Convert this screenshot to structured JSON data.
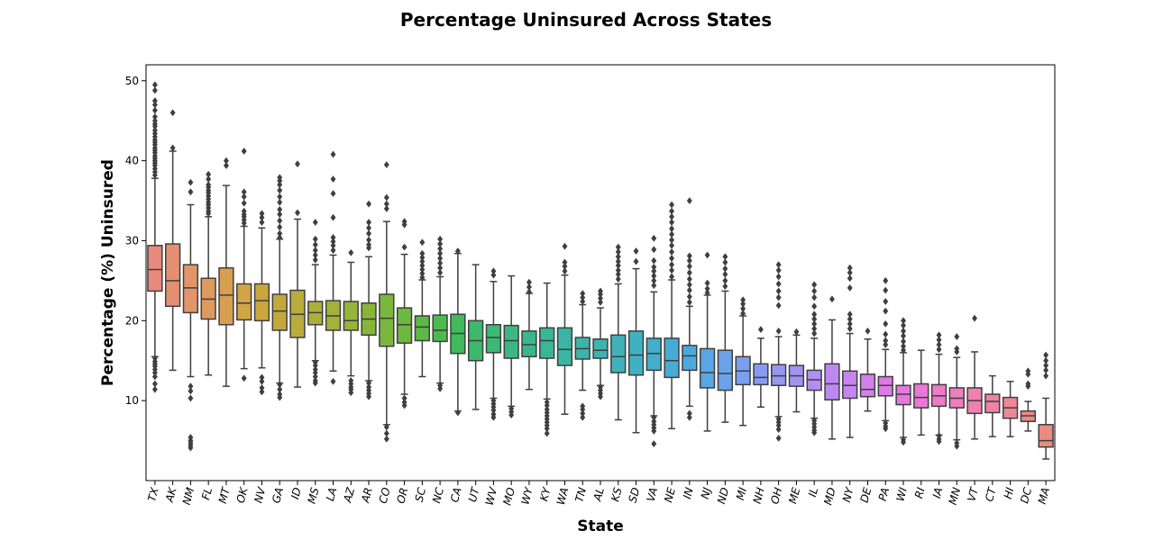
{
  "chart_data": {
    "type": "box",
    "title": "Percentage Uninsured Across States",
    "xlabel": "State",
    "ylabel": "Percentage (%) Uninsured",
    "ylim": [
      0,
      52
    ],
    "yticks": [
      10,
      20,
      30,
      40,
      50
    ],
    "grid": false,
    "legend": "none",
    "categories": [
      "TX",
      "AK",
      "NM",
      "FL",
      "MT",
      "OK",
      "NV",
      "GA",
      "ID",
      "MS",
      "LA",
      "AZ",
      "AR",
      "CO",
      "OR",
      "SC",
      "NC",
      "CA",
      "UT",
      "WV",
      "MO",
      "WY",
      "KY",
      "WA",
      "TN",
      "AL",
      "KS",
      "SD",
      "VA",
      "NE",
      "IN",
      "NJ",
      "ND",
      "MI",
      "NH",
      "OH",
      "ME",
      "IL",
      "MD",
      "NY",
      "DE",
      "PA",
      "WI",
      "RI",
      "IA",
      "MN",
      "VT",
      "CT",
      "HI",
      "DC",
      "MA"
    ],
    "colors": [
      "#e8897e",
      "#e58f72",
      "#e2956a",
      "#dd9a5e",
      "#d89f50",
      "#d2a445",
      "#cba63f",
      "#c3a93b",
      "#b9ac3d",
      "#aeae3d",
      "#a1b13a",
      "#95b43a",
      "#87b63b",
      "#7ab73c",
      "#6db83f",
      "#5cb943",
      "#4cba4c",
      "#3fba5c",
      "#3db96a",
      "#3cb976",
      "#3bb882",
      "#3ab78d",
      "#3ab697",
      "#3bb5a1",
      "#3db4a9",
      "#3eb3b1",
      "#3fb2ba",
      "#40b1c2",
      "#42afcb",
      "#45add4",
      "#4aaade",
      "#58a6e5",
      "#6aa2ea",
      "#7a9fee",
      "#889bf0",
      "#9597f1",
      "#a393f2",
      "#b08ef2",
      "#bc89f1",
      "#c884ef",
      "#d37fec",
      "#dd7ae8",
      "#e777e1",
      "#ec77d6",
      "#ee7ac9",
      "#ee7ebd",
      "#ee81b0",
      "#ee84a3",
      "#ed8896",
      "#eb8b8a",
      "#e98b80"
    ],
    "boxes": [
      {
        "q1": 23.7,
        "median": 26.4,
        "q3": 29.4,
        "whislo": 15.5,
        "whishi": 37.8,
        "fliers": [
          49.5,
          48.8,
          47.5,
          47,
          46.3,
          45.5,
          45,
          44.6,
          44.3,
          43.8,
          43.4,
          43,
          42.6,
          42.3,
          42,
          41.6,
          41.3,
          41,
          40.6,
          40.3,
          40,
          39.7,
          39.4,
          39,
          38.6,
          38.2,
          15.3,
          14.9,
          14.6,
          14.3,
          13.9,
          13.5,
          13,
          12.1,
          11.4
        ]
      },
      {
        "q1": 21.8,
        "median": 25,
        "q3": 29.6,
        "whislo": 13.8,
        "whishi": 41.2,
        "fliers": [
          46,
          41.6
        ]
      },
      {
        "q1": 21,
        "median": 24.1,
        "q3": 27,
        "whislo": 13,
        "whishi": 34.5,
        "fliers": [
          37.3,
          36.1,
          11.8,
          11.2,
          10.3,
          5.4,
          5,
          4.7,
          4.4,
          4.1
        ]
      },
      {
        "q1": 20.2,
        "median": 22.7,
        "q3": 25.3,
        "whislo": 13.2,
        "whishi": 33,
        "fliers": [
          38.3,
          37.7,
          37,
          36.7,
          36.3,
          36,
          35.6,
          35.2,
          34.8,
          34.5,
          34.1,
          33.7,
          33.4
        ]
      },
      {
        "q1": 19.5,
        "median": 23.2,
        "q3": 26.6,
        "whislo": 11.8,
        "whishi": 36.9,
        "fliers": [
          40,
          39.4
        ]
      },
      {
        "q1": 20.1,
        "median": 22.2,
        "q3": 24.6,
        "whislo": 14,
        "whishi": 31.8,
        "fliers": [
          41.2,
          36.1,
          35.5,
          34.7,
          33.7,
          33.3,
          33,
          32.6,
          32.2,
          12.8
        ]
      },
      {
        "q1": 20,
        "median": 22.5,
        "q3": 24.6,
        "whislo": 14.1,
        "whishi": 31.6,
        "fliers": [
          33.4,
          32.9,
          32.3,
          12.9,
          12.4,
          11.6,
          11.1
        ]
      },
      {
        "q1": 18.8,
        "median": 21.2,
        "q3": 23.3,
        "whislo": 12.2,
        "whishi": 30.2,
        "fliers": [
          37.9,
          37.5,
          37,
          36.3,
          35.5,
          34.8,
          33.9,
          33.3,
          32.5,
          31.7,
          30.9,
          30.4,
          12,
          11.4,
          10.8,
          10.4
        ]
      },
      {
        "q1": 17.9,
        "median": 20.8,
        "q3": 23.8,
        "whislo": 11.7,
        "whishi": 32.7,
        "fliers": [
          39.6,
          33.5
        ]
      },
      {
        "q1": 19.5,
        "median": 21,
        "q3": 22.4,
        "whislo": 15,
        "whishi": 27,
        "fliers": [
          32.3,
          30.2,
          29.5,
          28.8,
          28.2,
          27.6,
          14.8,
          14.4,
          13.9,
          13.5,
          13,
          12.5,
          12.2
        ]
      },
      {
        "q1": 18.8,
        "median": 20.6,
        "q3": 22.5,
        "whislo": 13.7,
        "whishi": 28.2,
        "fliers": [
          40.8,
          37.7,
          35.9,
          32.9,
          30.4,
          29.9,
          29.4,
          28.8,
          12.4
        ]
      },
      {
        "q1": 18.8,
        "median": 20,
        "q3": 22.4,
        "whislo": 13.1,
        "whishi": 27.3,
        "fliers": [
          28.5,
          12.5,
          12.1,
          11.7,
          11.4,
          11
        ]
      },
      {
        "q1": 18.2,
        "median": 20.2,
        "q3": 22.2,
        "whislo": 12.5,
        "whishi": 28,
        "fliers": [
          34.6,
          32.3,
          31.6,
          30.9,
          30.1,
          29.5,
          29.1,
          12.2,
          11.7,
          11.3,
          10.9,
          10.5
        ]
      },
      {
        "q1": 16.8,
        "median": 20.3,
        "q3": 23.3,
        "whislo": 7,
        "whishi": 32.4,
        "fliers": [
          39.5,
          35.4,
          34.6,
          34,
          6.7,
          5.9,
          5.2
        ]
      },
      {
        "q1": 17.2,
        "median": 19.5,
        "q3": 21.6,
        "whislo": 10.8,
        "whishi": 28.3,
        "fliers": [
          32.4,
          32,
          29.2,
          10.3,
          9.8,
          9.4
        ]
      },
      {
        "q1": 17.5,
        "median": 19.2,
        "q3": 20.6,
        "whislo": 13,
        "whishi": 25.1,
        "fliers": [
          29.8,
          28.4,
          27.9,
          27.4,
          26.9,
          26.4,
          25.9,
          25.4
        ]
      },
      {
        "q1": 17.4,
        "median": 18.8,
        "q3": 20.7,
        "whislo": 12.2,
        "whishi": 25.5,
        "fliers": [
          30.2,
          29.6,
          29,
          28.4,
          27.8,
          27.2,
          26.6,
          26,
          11.9,
          11.5
        ]
      },
      {
        "q1": 15.9,
        "median": 18.4,
        "q3": 20.8,
        "whislo": 8.7,
        "whishi": 28.4,
        "fliers": [
          28.7,
          8.5
        ]
      },
      {
        "q1": 15,
        "median": 17.5,
        "q3": 20,
        "whislo": 8.9,
        "whishi": 27,
        "fliers": []
      },
      {
        "q1": 16,
        "median": 17.9,
        "q3": 19.5,
        "whislo": 10.3,
        "whishi": 24.9,
        "fliers": [
          26.2,
          25.7,
          10,
          9.6,
          9.2,
          8.8,
          8.3,
          7.9
        ]
      },
      {
        "q1": 15.3,
        "median": 17.5,
        "q3": 19.4,
        "whislo": 9.3,
        "whishi": 25.6,
        "fliers": [
          9,
          8.6,
          8.2
        ]
      },
      {
        "q1": 15.5,
        "median": 17,
        "q3": 18.7,
        "whislo": 11.4,
        "whishi": 23.4,
        "fliers": [
          24.8,
          24.2,
          23.6
        ]
      },
      {
        "q1": 15.3,
        "median": 17.5,
        "q3": 19.1,
        "whislo": 10.2,
        "whishi": 24.7,
        "fliers": [
          9.8,
          9.4,
          8.9,
          8.5,
          8.1,
          7.7,
          7.3,
          6.9,
          6.5,
          5.9
        ]
      },
      {
        "q1": 14.4,
        "median": 16.4,
        "q3": 19.1,
        "whislo": 8.3,
        "whishi": 25.7,
        "fliers": [
          29.3,
          27.3,
          26.8,
          26.2
        ]
      },
      {
        "q1": 15.2,
        "median": 16.5,
        "q3": 17.9,
        "whislo": 11.3,
        "whishi": 22,
        "fliers": [
          23.4,
          22.9,
          22.4,
          9.3,
          8.9,
          8.4,
          7.9
        ]
      },
      {
        "q1": 15.3,
        "median": 16.3,
        "q3": 17.7,
        "whislo": 11.9,
        "whishi": 21.6,
        "fliers": [
          23.7,
          23.3,
          22.8,
          22.3,
          11.7,
          11.3,
          10.9,
          10.5
        ]
      },
      {
        "q1": 13.5,
        "median": 15.5,
        "q3": 18.2,
        "whislo": 7.6,
        "whishi": 24.6,
        "fliers": [
          29.2,
          28.6,
          28,
          27.4,
          26.9,
          26.3,
          25.8,
          25.2
        ]
      },
      {
        "q1": 13.2,
        "median": 15.7,
        "q3": 18.7,
        "whislo": 6,
        "whishi": 26.5,
        "fliers": [
          28.7,
          27.4
        ]
      },
      {
        "q1": 13.8,
        "median": 15.9,
        "q3": 17.8,
        "whislo": 8.1,
        "whishi": 23.6,
        "fliers": [
          30.3,
          28.9,
          27.5,
          26.7,
          26.2,
          25.6,
          25,
          24.4,
          7.9,
          7.4,
          7,
          6.6,
          6.2,
          4.6
        ]
      },
      {
        "q1": 12.9,
        "median": 15,
        "q3": 17.8,
        "whislo": 6.5,
        "whishi": 25.1,
        "fliers": [
          34.5,
          33.7,
          33,
          32.3,
          31.5,
          30.8,
          30.1,
          29.4,
          28.6,
          27.8,
          27,
          26.3,
          25.5
        ]
      },
      {
        "q1": 13.8,
        "median": 15.6,
        "q3": 16.9,
        "whislo": 9.3,
        "whishi": 21.8,
        "fliers": [
          35,
          28.1,
          27.5,
          26.8,
          26,
          25.2,
          24.5,
          23.8,
          23,
          22.3,
          8.4,
          7.9
        ]
      },
      {
        "q1": 11.6,
        "median": 13.5,
        "q3": 16.5,
        "whislo": 6.2,
        "whishi": 23.2,
        "fliers": [
          28.2,
          24.7,
          24,
          23.5
        ]
      },
      {
        "q1": 11.3,
        "median": 13.4,
        "q3": 16.3,
        "whislo": 7.3,
        "whishi": 23.7,
        "fliers": [
          28,
          27.3,
          26.5,
          25.8,
          25,
          24.3
        ]
      },
      {
        "q1": 12,
        "median": 13.7,
        "q3": 15.5,
        "whislo": 6.9,
        "whishi": 20.6,
        "fliers": [
          22.6,
          22.1,
          21.5,
          20.9
        ]
      },
      {
        "q1": 12,
        "median": 12.9,
        "q3": 14.6,
        "whislo": 9.2,
        "whishi": 17.8,
        "fliers": [
          18.9
        ]
      },
      {
        "q1": 11.9,
        "median": 13.1,
        "q3": 14.5,
        "whislo": 8,
        "whishi": 18,
        "fliers": [
          27,
          26.3,
          25.5,
          24.6,
          23.7,
          22.9,
          21.9,
          18.7,
          7.7,
          7.3,
          6.9,
          6.4,
          5.3
        ]
      },
      {
        "q1": 11.8,
        "median": 13.1,
        "q3": 14.4,
        "whislo": 8.6,
        "whishi": 18.2,
        "fliers": [
          18.6
        ]
      },
      {
        "q1": 11.3,
        "median": 12.6,
        "q3": 13.8,
        "whislo": 7.8,
        "whishi": 17.8,
        "fliers": [
          24.5,
          23.7,
          22.9,
          21.8,
          20.8,
          20.2,
          19.6,
          19,
          18.4,
          7.5,
          7.1,
          6.7,
          6.3,
          6
        ]
      },
      {
        "q1": 10.1,
        "median": 12.1,
        "q3": 14.6,
        "whislo": 5.2,
        "whishi": 20.1,
        "fliers": [
          22.7
        ]
      },
      {
        "q1": 10.3,
        "median": 11.9,
        "q3": 13.7,
        "whislo": 5.4,
        "whishi": 18.4,
        "fliers": [
          26.6,
          26,
          25.3,
          24.1,
          20.8,
          20.2,
          19.6,
          19
        ]
      },
      {
        "q1": 10.5,
        "median": 11.4,
        "q3": 13.3,
        "whislo": 8.7,
        "whishi": 17.7,
        "fliers": [
          18.7
        ]
      },
      {
        "q1": 10.6,
        "median": 11.9,
        "q3": 13,
        "whislo": 7.5,
        "whishi": 16.4,
        "fliers": [
          25,
          23.8,
          22.4,
          21.2,
          19.6,
          18.3,
          17.5,
          17,
          7.2,
          6.8,
          6.5
        ]
      },
      {
        "q1": 9.5,
        "median": 10.8,
        "q3": 11.9,
        "whislo": 5.4,
        "whishi": 16,
        "fliers": [
          20,
          19.4,
          18.7,
          18.1,
          17.4,
          16.8,
          16.3,
          5.1,
          4.8
        ]
      },
      {
        "q1": 9.1,
        "median": 10.4,
        "q3": 12.1,
        "whislo": 5.7,
        "whishi": 16.3,
        "fliers": []
      },
      {
        "q1": 9.3,
        "median": 10.6,
        "q3": 12,
        "whislo": 5.7,
        "whishi": 15.8,
        "fliers": [
          18.2,
          17.6,
          17,
          16.4,
          5.6,
          5.2,
          4.9
        ]
      },
      {
        "q1": 9.1,
        "median": 10.3,
        "q3": 11.6,
        "whislo": 5.1,
        "whishi": 15.4,
        "fliers": [
          18,
          16.5,
          16.1,
          4.7,
          4.3
        ]
      },
      {
        "q1": 8.4,
        "median": 10,
        "q3": 11.6,
        "whislo": 5.2,
        "whishi": 16.1,
        "fliers": [
          20.3
        ]
      },
      {
        "q1": 8.5,
        "median": 9.9,
        "q3": 10.8,
        "whislo": 5.5,
        "whishi": 13.1,
        "fliers": []
      },
      {
        "q1": 7.8,
        "median": 9.1,
        "q3": 10.4,
        "whislo": 5.5,
        "whishi": 12.4,
        "fliers": []
      },
      {
        "q1": 7.4,
        "median": 8.1,
        "q3": 8.7,
        "whislo": 6.2,
        "whishi": 9.9,
        "fliers": [
          13.7,
          13.3,
          12.1,
          11.8
        ]
      },
      {
        "q1": 4.2,
        "median": 5,
        "q3": 7,
        "whislo": 2.7,
        "whishi": 10.3,
        "fliers": [
          15.7,
          15,
          14.4,
          13.8,
          13.1
        ]
      }
    ]
  }
}
